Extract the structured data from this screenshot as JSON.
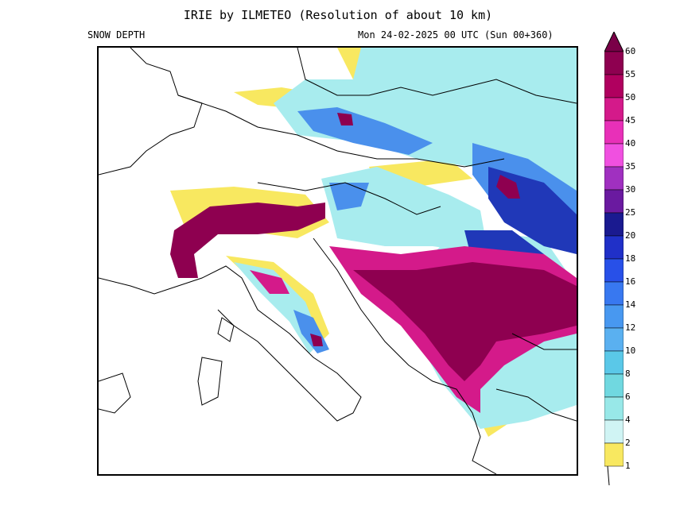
{
  "header": {
    "title": "IRIE by ILMETEO (Resolution of about 10 km)",
    "field": "SNOW DEPTH",
    "valid": "Mon 24-02-2025 00 UTC (Sun 00+360)"
  },
  "legend": {
    "levels": [
      {
        "label": "60",
        "color": ""
      },
      {
        "label": "55",
        "color": "#8e0050"
      },
      {
        "label": "50",
        "color": "#b0005f"
      },
      {
        "label": "45",
        "color": "#d41a8a"
      },
      {
        "label": "40",
        "color": "#e830b8"
      },
      {
        "label": "35",
        "color": "#f050e0"
      },
      {
        "label": "30",
        "color": "#a030c0"
      },
      {
        "label": "25",
        "color": "#6a1aa0"
      },
      {
        "label": "20",
        "color": "#1a1a90"
      },
      {
        "label": "18",
        "color": "#2030c8"
      },
      {
        "label": "16",
        "color": "#2850e8"
      },
      {
        "label": "14",
        "color": "#3878f0"
      },
      {
        "label": "12",
        "color": "#4898f0"
      },
      {
        "label": "10",
        "color": "#5ab0f0"
      },
      {
        "label": "8",
        "color": "#5ac8e8"
      },
      {
        "label": "6",
        "color": "#70d8e0"
      },
      {
        "label": "4",
        "color": "#98e8e8"
      },
      {
        "label": "2",
        "color": "#d0f4f4"
      },
      {
        "label": "1",
        "color": "#f8e860"
      }
    ],
    "top_color": "#7a0048"
  }
}
